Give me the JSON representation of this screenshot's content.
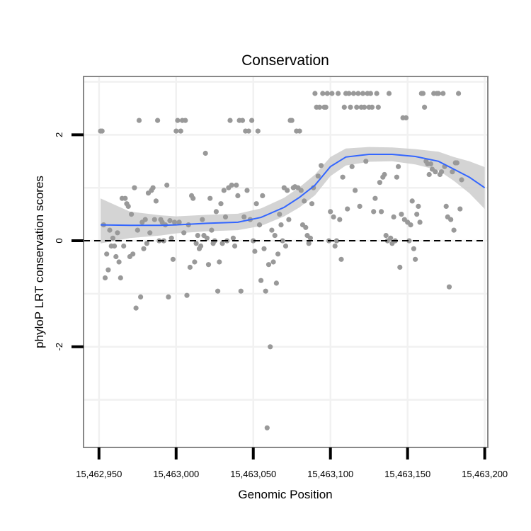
{
  "chart_data": {
    "type": "scatter",
    "title": "Conservation",
    "xlabel": "Genomic Position",
    "ylabel": "phyloP LRT conservation scores",
    "xlim": [
      15462940,
      15463202
    ],
    "ylim": [
      -3.9,
      3.1
    ],
    "x_ticks": [
      15462950,
      15463000,
      15463050,
      15463100,
      15463150,
      15463200
    ],
    "x_tick_labels": [
      "15,462,950",
      "15,463,000",
      "15,463,050",
      "15,463,100",
      "15,463,150",
      "15,463,200"
    ],
    "y_ticks": [
      -2,
      0,
      2
    ],
    "y_tick_labels": [
      "-2",
      "0",
      "2"
    ],
    "y_minor_grid": [
      -3,
      -1,
      1,
      3
    ],
    "reference_line": {
      "y": 0,
      "style": "dashed"
    },
    "points_color": "#999999",
    "smooth_color": "#3366ff",
    "ribbon_color": "#cccccc",
    "smooth": {
      "x": [
        15462951,
        15462970,
        15462990,
        15463000,
        15463020,
        15463040,
        15463055,
        15463070,
        15463080,
        15463090,
        15463100,
        15463110,
        15463125,
        15463140,
        15463155,
        15463170,
        15463180,
        15463190,
        15463200
      ],
      "y": [
        0.3,
        0.29,
        0.29,
        0.3,
        0.33,
        0.35,
        0.44,
        0.63,
        0.82,
        1.05,
        1.4,
        1.58,
        1.63,
        1.63,
        1.59,
        1.5,
        1.35,
        1.2,
        1.0
      ],
      "lower": [
        -0.05,
        0.05,
        0.1,
        0.14,
        0.18,
        0.2,
        0.28,
        0.46,
        0.63,
        0.86,
        1.22,
        1.42,
        1.49,
        1.5,
        1.44,
        1.33,
        1.13,
        0.9,
        0.6
      ],
      "upper": [
        0.8,
        0.55,
        0.48,
        0.46,
        0.49,
        0.51,
        0.61,
        0.81,
        1.01,
        1.25,
        1.58,
        1.74,
        1.77,
        1.76,
        1.73,
        1.68,
        1.58,
        1.5,
        1.39
      ]
    },
    "points": [
      [
        15462951,
        2.07
      ],
      [
        15462952,
        2.07
      ],
      [
        15462953,
        0.3
      ],
      [
        15462954,
        -0.7
      ],
      [
        15462955,
        -0.25
      ],
      [
        15462956,
        -0.55
      ],
      [
        15462957,
        0.2
      ],
      [
        15462958,
        -0.1
      ],
      [
        15462959,
        0.05
      ],
      [
        15462960,
        -0.1
      ],
      [
        15462961,
        -0.3
      ],
      [
        15462962,
        0.15
      ],
      [
        15462963,
        -0.4
      ],
      [
        15462964,
        -0.7
      ],
      [
        15462965,
        0.8
      ],
      [
        15462966,
        -0.1
      ],
      [
        15462967,
        0.8
      ],
      [
        15462968,
        0.7
      ],
      [
        15462969,
        0.65
      ],
      [
        15462970,
        -0.3
      ],
      [
        15462971,
        0.5
      ],
      [
        15462972,
        -0.25
      ],
      [
        15462973,
        1.0
      ],
      [
        15462974,
        -1.27
      ],
      [
        15462975,
        0.2
      ],
      [
        15462976,
        2.27
      ],
      [
        15462977,
        -1.06
      ],
      [
        15462978,
        0.35
      ],
      [
        15462979,
        -0.15
      ],
      [
        15462980,
        0.4
      ],
      [
        15462981,
        -0.05
      ],
      [
        15462982,
        0.9
      ],
      [
        15462983,
        0.15
      ],
      [
        15462984,
        0.95
      ],
      [
        15462985,
        1.0
      ],
      [
        15462986,
        0.4
      ],
      [
        15462987,
        0.75
      ],
      [
        15462988,
        2.27
      ],
      [
        15462989,
        0.0
      ],
      [
        15462990,
        0.4
      ],
      [
        15462991,
        0.35
      ],
      [
        15462992,
        0.0
      ],
      [
        15462993,
        0.3
      ],
      [
        15462994,
        1.05
      ],
      [
        15462995,
        -1.06
      ],
      [
        15462996,
        0.38
      ],
      [
        15462997,
        0.05
      ],
      [
        15462998,
        -0.35
      ],
      [
        15462999,
        0.35
      ],
      [
        15463000,
        2.07
      ],
      [
        15463001,
        2.27
      ],
      [
        15463002,
        0.35
      ],
      [
        15463003,
        2.07
      ],
      [
        15463004,
        2.27
      ],
      [
        15463005,
        0.15
      ],
      [
        15463006,
        2.27
      ],
      [
        15463007,
        -1.03
      ],
      [
        15463008,
        0.3
      ],
      [
        15463009,
        -0.5
      ],
      [
        15463010,
        0.85
      ],
      [
        15463011,
        0.8
      ],
      [
        15463012,
        -0.4
      ],
      [
        15463013,
        -0.05
      ],
      [
        15463014,
        0.1
      ],
      [
        15463015,
        -0.15
      ],
      [
        15463016,
        -0.1
      ],
      [
        15463017,
        0.4
      ],
      [
        15463018,
        0.1
      ],
      [
        15463019,
        1.65
      ],
      [
        15463020,
        0.05
      ],
      [
        15463021,
        -0.45
      ],
      [
        15463022,
        0.8
      ],
      [
        15463023,
        0.2
      ],
      [
        15463024,
        -0.05
      ],
      [
        15463025,
        0.0
      ],
      [
        15463026,
        0.55
      ],
      [
        15463027,
        -0.95
      ],
      [
        15463028,
        -0.4
      ],
      [
        15463029,
        0.7
      ],
      [
        15463030,
        -0.05
      ],
      [
        15463031,
        0.95
      ],
      [
        15463032,
        0.45
      ],
      [
        15463033,
        0.0
      ],
      [
        15463034,
        1.0
      ],
      [
        15463035,
        2.27
      ],
      [
        15463036,
        1.05
      ],
      [
        15463037,
        0.05
      ],
      [
        15463038,
        -0.1
      ],
      [
        15463039,
        1.05
      ],
      [
        15463040,
        0.85
      ],
      [
        15463041,
        2.27
      ],
      [
        15463042,
        -0.95
      ],
      [
        15463043,
        2.27
      ],
      [
        15463044,
        0.45
      ],
      [
        15463045,
        2.07
      ],
      [
        15463046,
        0.95
      ],
      [
        15463047,
        2.07
      ],
      [
        15463048,
        0.4
      ],
      [
        15463049,
        2.27
      ],
      [
        15463050,
        0.0
      ],
      [
        15463051,
        -0.2
      ],
      [
        15463052,
        0.7
      ],
      [
        15463053,
        2.07
      ],
      [
        15463054,
        0.3
      ],
      [
        15463055,
        -0.75
      ],
      [
        15463056,
        0.85
      ],
      [
        15463057,
        -0.15
      ],
      [
        15463058,
        -0.95
      ],
      [
        15463059,
        -3.53
      ],
      [
        15463060,
        -0.45
      ],
      [
        15463061,
        -2.0
      ],
      [
        15463062,
        0.2
      ],
      [
        15463063,
        -0.4
      ],
      [
        15463064,
        0.1
      ],
      [
        15463065,
        -0.8
      ],
      [
        15463066,
        -0.25
      ],
      [
        15463067,
        0.5
      ],
      [
        15463068,
        0.3
      ],
      [
        15463069,
        0.0
      ],
      [
        15463070,
        1.0
      ],
      [
        15463071,
        -0.1
      ],
      [
        15463072,
        0.95
      ],
      [
        15463073,
        0.4
      ],
      [
        15463074,
        2.27
      ],
      [
        15463075,
        2.27
      ],
      [
        15463076,
        1.0
      ],
      [
        15463077,
        1.02
      ],
      [
        15463078,
        2.07
      ],
      [
        15463079,
        1.0
      ],
      [
        15463080,
        2.07
      ],
      [
        15463081,
        0.95
      ],
      [
        15463082,
        0.3
      ],
      [
        15463083,
        0.75
      ],
      [
        15463084,
        0.25
      ],
      [
        15463085,
        0.1
      ],
      [
        15463086,
        -0.05
      ],
      [
        15463087,
        0.05
      ],
      [
        15463088,
        0.7
      ],
      [
        15463089,
        1.0
      ],
      [
        15463090,
        2.78
      ],
      [
        15463091,
        2.52
      ],
      [
        15463092,
        1.22
      ],
      [
        15463093,
        2.52
      ],
      [
        15463094,
        1.42
      ],
      [
        15463095,
        2.78
      ],
      [
        15463096,
        2.52
      ],
      [
        15463097,
        2.52
      ],
      [
        15463098,
        2.78
      ],
      [
        15463099,
        0.0
      ],
      [
        15463100,
        0.55
      ],
      [
        15463101,
        2.78
      ],
      [
        15463102,
        0.45
      ],
      [
        15463103,
        -0.1
      ],
      [
        15463104,
        0.0
      ],
      [
        15463105,
        2.78
      ],
      [
        15463106,
        0.4
      ],
      [
        15463107,
        -0.35
      ],
      [
        15463108,
        1.2
      ],
      [
        15463109,
        2.52
      ],
      [
        15463110,
        2.78
      ],
      [
        15463111,
        0.6
      ],
      [
        15463112,
        2.78
      ],
      [
        15463113,
        2.52
      ],
      [
        15463114,
        1.4
      ],
      [
        15463115,
        2.78
      ],
      [
        15463116,
        0.95
      ],
      [
        15463117,
        2.52
      ],
      [
        15463118,
        2.78
      ],
      [
        15463119,
        0.65
      ],
      [
        15463120,
        2.52
      ],
      [
        15463121,
        2.78
      ],
      [
        15463122,
        2.52
      ],
      [
        15463123,
        1.5
      ],
      [
        15463124,
        2.78
      ],
      [
        15463125,
        2.52
      ],
      [
        15463126,
        2.78
      ],
      [
        15463127,
        2.52
      ],
      [
        15463128,
        0.55
      ],
      [
        15463129,
        0.8
      ],
      [
        15463130,
        2.78
      ],
      [
        15463131,
        2.52
      ],
      [
        15463132,
        1.1
      ],
      [
        15463133,
        0.55
      ],
      [
        15463134,
        1.2
      ],
      [
        15463135,
        1.25
      ],
      [
        15463136,
        0.1
      ],
      [
        15463137,
        0.0
      ],
      [
        15463138,
        2.78
      ],
      [
        15463139,
        0.05
      ],
      [
        15463140,
        -0.05
      ],
      [
        15463141,
        0.45
      ],
      [
        15463142,
        0.0
      ],
      [
        15463143,
        1.2
      ],
      [
        15463144,
        1.4
      ],
      [
        15463145,
        -0.5
      ],
      [
        15463146,
        0.5
      ],
      [
        15463147,
        2.32
      ],
      [
        15463148,
        0.4
      ],
      [
        15463149,
        2.32
      ],
      [
        15463150,
        0.35
      ],
      [
        15463151,
        0.0
      ],
      [
        15463152,
        0.3
      ],
      [
        15463153,
        0.75
      ],
      [
        15463154,
        -0.15
      ],
      [
        15463155,
        -0.35
      ],
      [
        15463156,
        0.5
      ],
      [
        15463157,
        0.65
      ],
      [
        15463158,
        0.35
      ],
      [
        15463159,
        2.78
      ],
      [
        15463160,
        2.78
      ],
      [
        15463161,
        2.52
      ],
      [
        15463162,
        1.5
      ],
      [
        15463163,
        1.45
      ],
      [
        15463164,
        1.25
      ],
      [
        15463165,
        1.45
      ],
      [
        15463166,
        1.35
      ],
      [
        15463167,
        2.78
      ],
      [
        15463168,
        1.3
      ],
      [
        15463169,
        2.78
      ],
      [
        15463170,
        2.78
      ],
      [
        15463171,
        1.25
      ],
      [
        15463172,
        1.3
      ],
      [
        15463173,
        2.78
      ],
      [
        15463174,
        1.4
      ],
      [
        15463175,
        0.65
      ],
      [
        15463176,
        0.45
      ],
      [
        15463177,
        -0.87
      ],
      [
        15463178,
        0.4
      ],
      [
        15463179,
        1.3
      ],
      [
        15463180,
        0.2
      ],
      [
        15463181,
        1.47
      ],
      [
        15463182,
        1.47
      ],
      [
        15463183,
        2.78
      ],
      [
        15463184,
        0.6
      ],
      [
        15463185,
        1.15
      ]
    ]
  }
}
